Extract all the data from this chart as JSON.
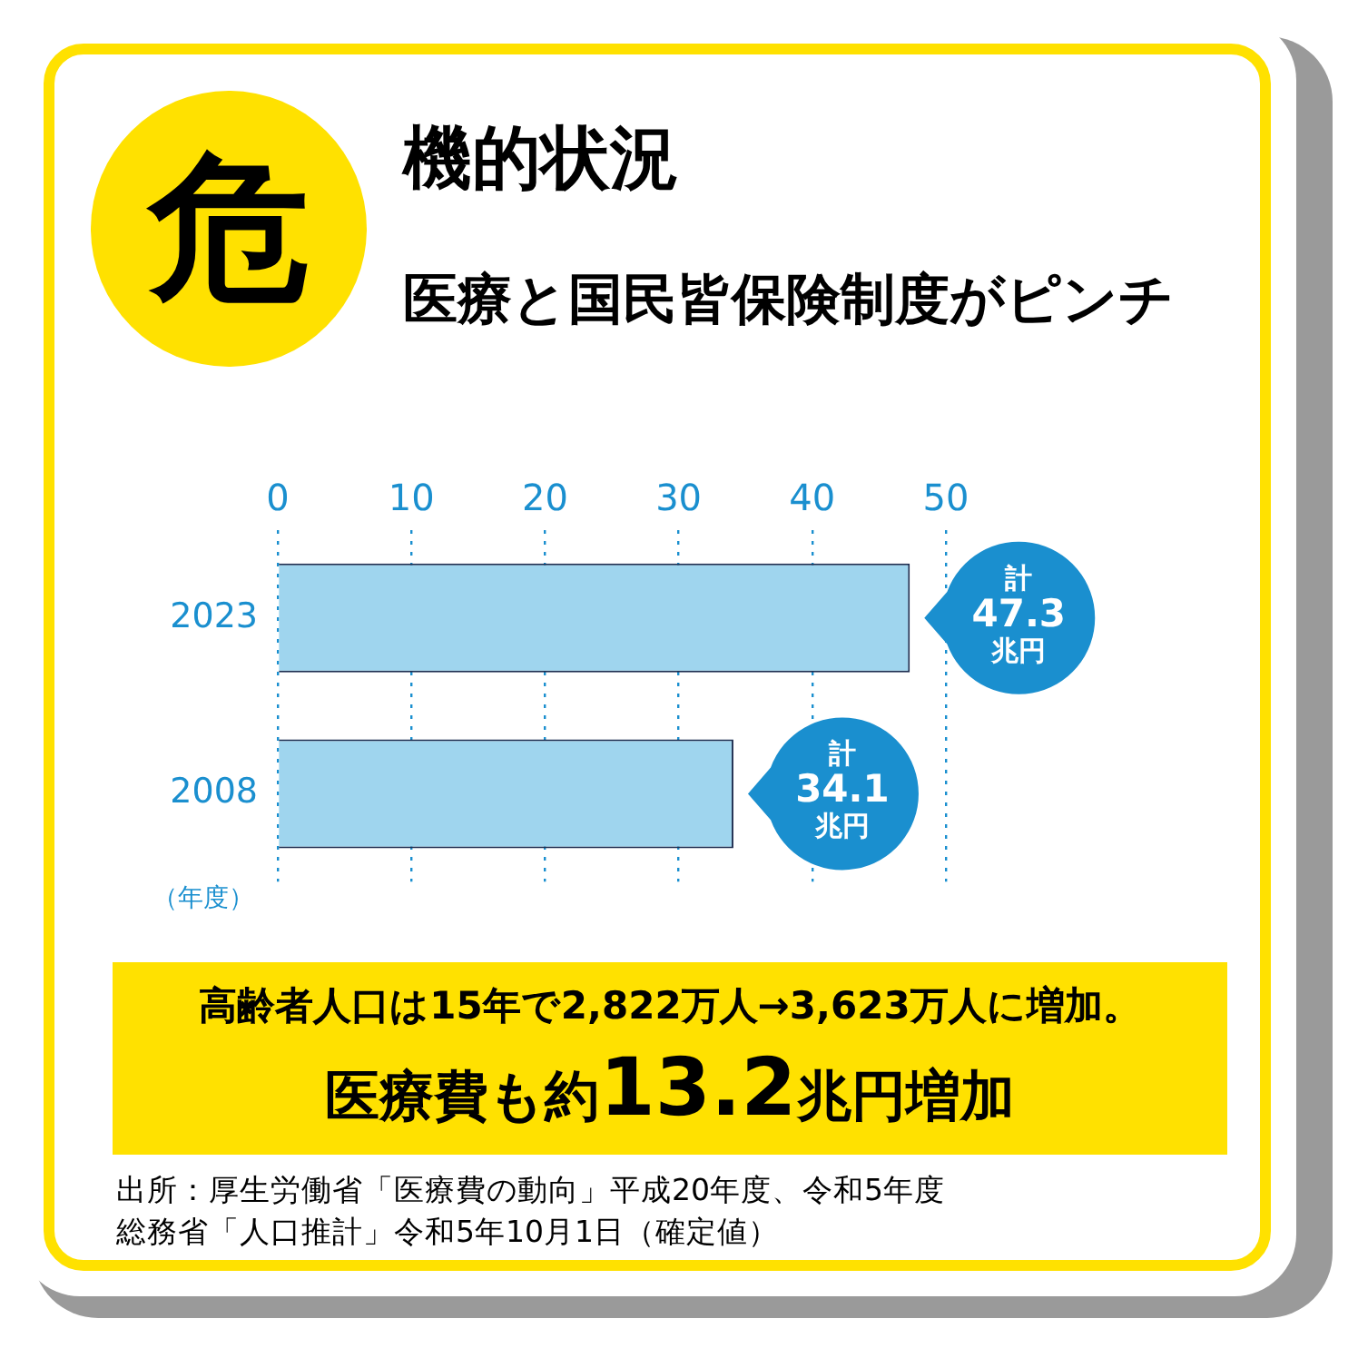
{
  "chart_data": {
    "type": "bar",
    "orientation": "horizontal",
    "title": "危機的状況",
    "subtitle": "医療と国民皆保険制度がピンチ",
    "ylabel": "（年度）",
    "categories": [
      "2023",
      "2008"
    ],
    "values": [
      47.3,
      34.1
    ],
    "value_labels": [
      "計\n47.3\n兆円",
      "計\n34.1\n兆円"
    ],
    "color": "#9fd5ee",
    "xlim": [
      0,
      50
    ],
    "xticks": [
      0,
      10,
      20,
      30,
      40,
      50
    ],
    "grid": "x",
    "annotations": [
      "高齢者人口は15年で2,822万人→3,623万人に増加。",
      "医療費も約13.2兆円増加",
      "出所：厚生労働省「医療費の動向」平成20年度、令和5年度",
      "総務省「人口推計」令和5年10月1日（確定値）"
    ]
  }
}
